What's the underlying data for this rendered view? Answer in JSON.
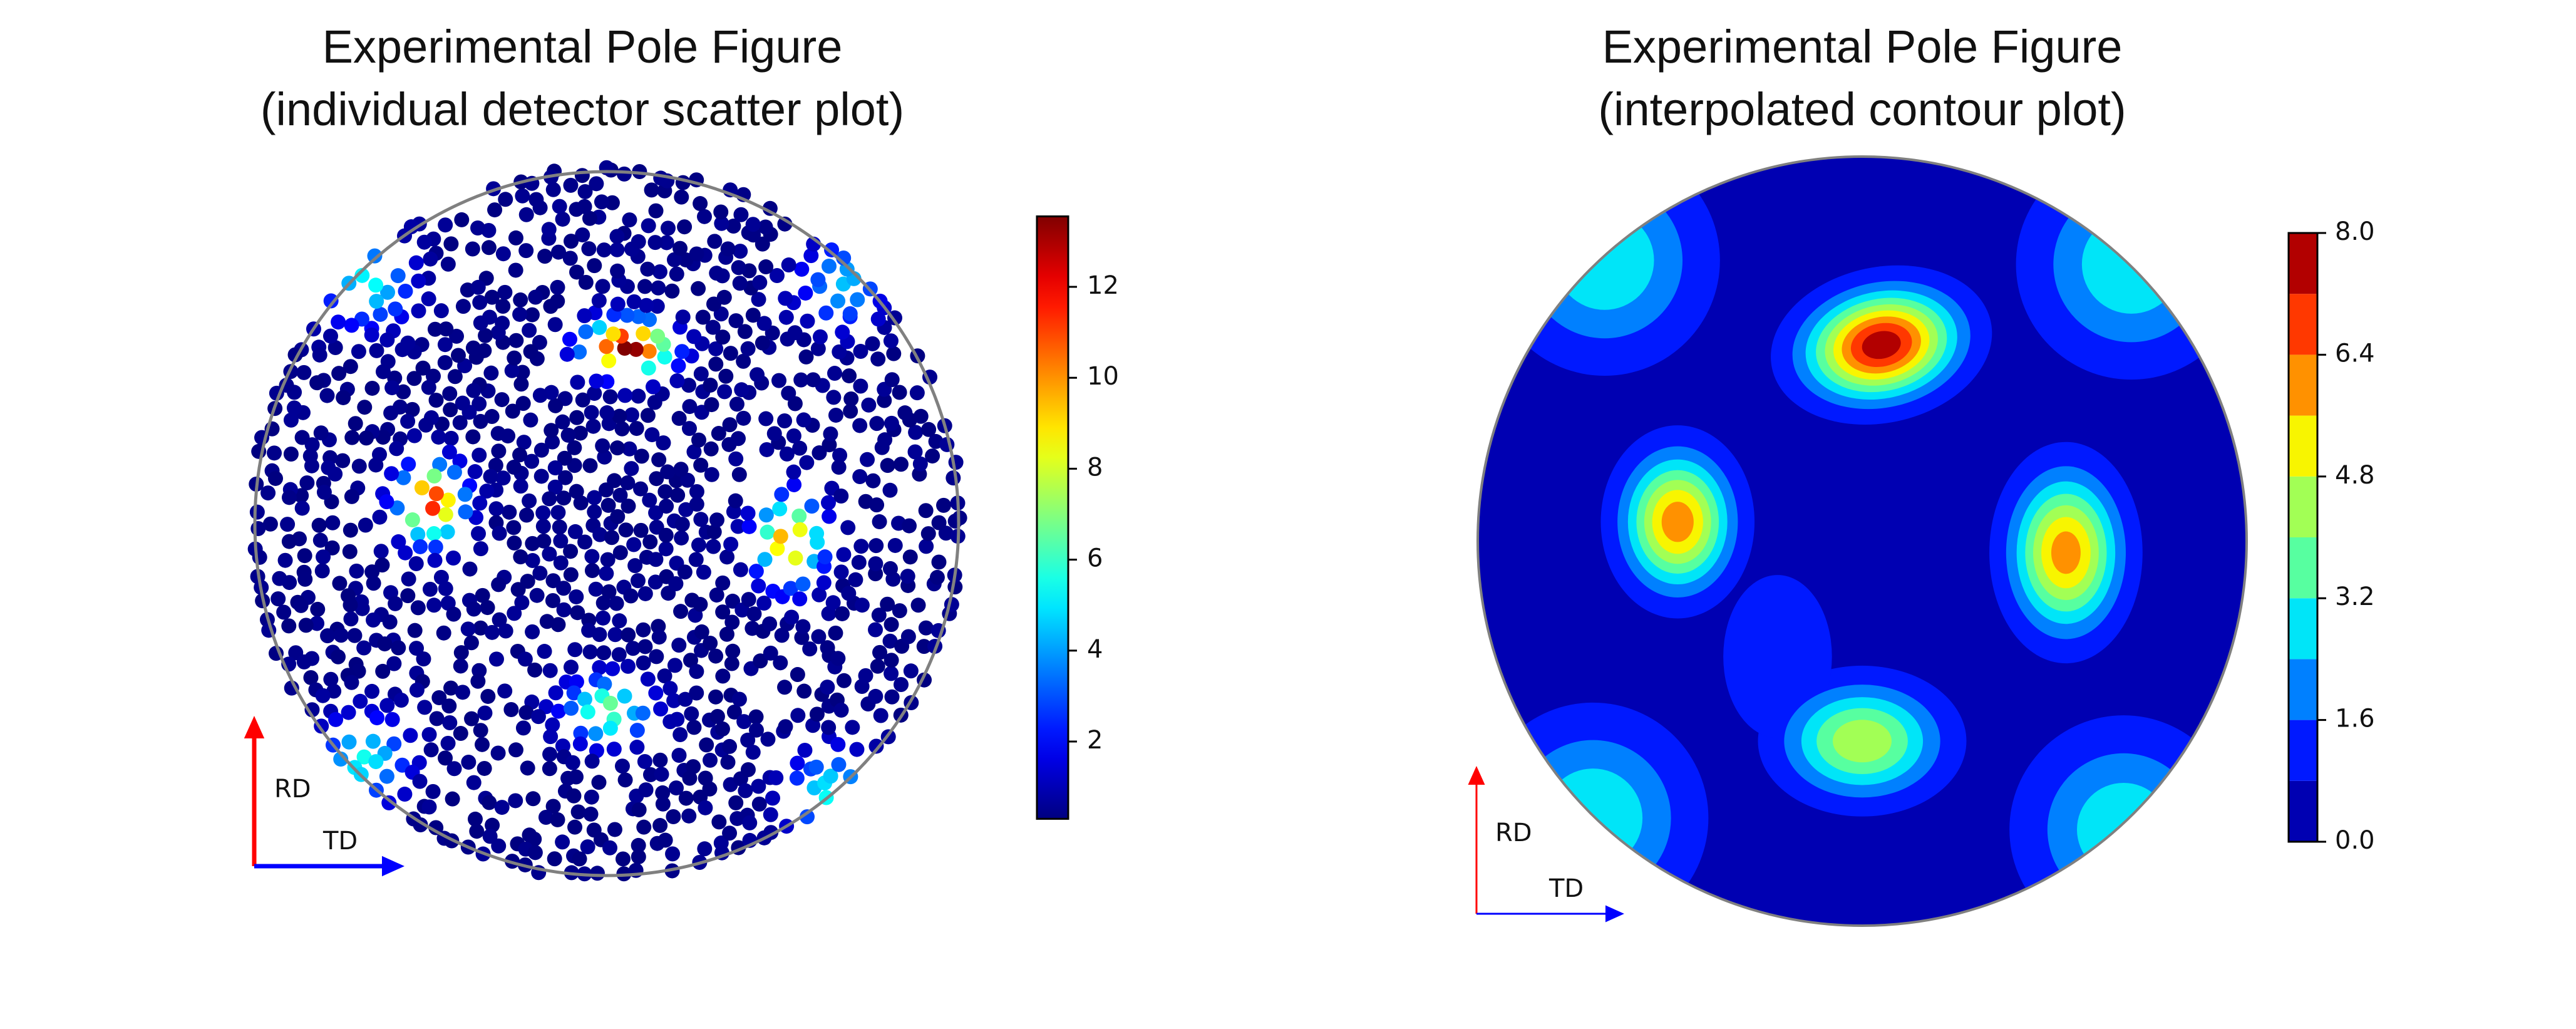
{
  "chart_data": [
    {
      "type": "scatter",
      "title_lines": [
        "Experimental Pole Figure",
        "(individual detector scatter plot)"
      ],
      "colormap": "jet",
      "colorbar": {
        "range": [
          0.3,
          13.55
        ],
        "ticks": [
          "2",
          "4",
          "6",
          "8",
          "10",
          "12"
        ]
      },
      "axis_arrows": {
        "vertical": "RD",
        "horizontal": "TD",
        "vertical_color": "#ff0000",
        "horizontal_color": "#0000ff"
      },
      "outline_color": "#808080",
      "background_level": 0.4,
      "peaks": [
        {
          "td": 0.06,
          "rd": 0.5,
          "value": 13.5,
          "width_td": 0.08,
          "width_rd": 0.05
        },
        {
          "td": -0.5,
          "rd": 0.06,
          "value": 11.5,
          "width_td": 0.06,
          "width_rd": 0.07
        },
        {
          "td": 0.52,
          "rd": -0.05,
          "value": 10.0,
          "width_td": 0.06,
          "width_rd": 0.08
        },
        {
          "td": 0.0,
          "rd": -0.53,
          "value": 6.5,
          "width_td": 0.08,
          "width_rd": 0.06
        },
        {
          "td": -0.68,
          "rd": 0.68,
          "value": 5.0,
          "width_td": 0.08,
          "width_rd": 0.08
        },
        {
          "td": 0.67,
          "rd": 0.68,
          "value": 4.0,
          "width_td": 0.08,
          "width_rd": 0.08
        },
        {
          "td": -0.69,
          "rd": -0.67,
          "value": 5.0,
          "width_td": 0.08,
          "width_rd": 0.08
        },
        {
          "td": 0.64,
          "rd": -0.77,
          "value": 5.0,
          "width_td": 0.08,
          "width_rd": 0.08
        }
      ]
    },
    {
      "type": "contour",
      "title_lines": [
        "Experimental Pole Figure",
        "(interpolated contour plot)"
      ],
      "colormap": "jet",
      "colorbar": {
        "range": [
          0.0,
          8.0
        ],
        "ticks": [
          "0.0",
          "1.6",
          "3.2",
          "4.8",
          "6.4",
          "8.0"
        ],
        "levels": [
          0.0,
          0.8,
          1.6,
          2.4,
          3.2,
          4.0,
          4.8,
          5.6,
          6.4,
          7.2,
          8.0
        ],
        "band_colors": [
          "#0000b2",
          "#0019ff",
          "#0080ff",
          "#00e5f8",
          "#57ffa0",
          "#a2ff55",
          "#f8f500",
          "#ff9100",
          "#ff3800",
          "#b20000"
        ]
      },
      "axis_arrows": {
        "vertical": "RD",
        "horizontal": "TD",
        "vertical_color": "#ff0000",
        "horizontal_color": "#0000ff"
      },
      "outline_color": "#808080",
      "background_level": 0.3,
      "peaks": [
        {
          "td": 0.05,
          "rd": 0.51,
          "value": 7.5,
          "width_td": 0.125,
          "width_rd": 0.087,
          "tilt_deg": -12
        },
        {
          "td": -0.48,
          "rd": 0.05,
          "value": 5.9,
          "width_td": 0.09,
          "width_rd": 0.113,
          "tilt_deg": 0
        },
        {
          "td": 0.53,
          "rd": -0.03,
          "value": 5.8,
          "width_td": 0.09,
          "width_rd": 0.13,
          "tilt_deg": 0
        },
        {
          "td": 0.0,
          "rd": -0.52,
          "value": 4.4,
          "width_td": 0.13,
          "width_rd": 0.094,
          "tilt_deg": 0
        },
        {
          "td": -0.67,
          "rd": 0.73,
          "value": 2.9,
          "width_td": 0.16,
          "width_rd": 0.16,
          "tilt_deg": 0
        },
        {
          "td": 0.7,
          "rd": 0.72,
          "value": 2.9,
          "width_td": 0.16,
          "width_rd": 0.16,
          "tilt_deg": 0
        },
        {
          "td": -0.7,
          "rd": -0.72,
          "value": 2.9,
          "width_td": 0.16,
          "width_rd": 0.16,
          "tilt_deg": 0
        },
        {
          "td": 0.68,
          "rd": -0.75,
          "value": 2.8,
          "width_td": 0.16,
          "width_rd": 0.16,
          "tilt_deg": 0
        },
        {
          "td": -0.22,
          "rd": -0.3,
          "value": 1.0,
          "width_td": 0.12,
          "width_rd": 0.18,
          "tilt_deg": 0
        }
      ]
    }
  ]
}
